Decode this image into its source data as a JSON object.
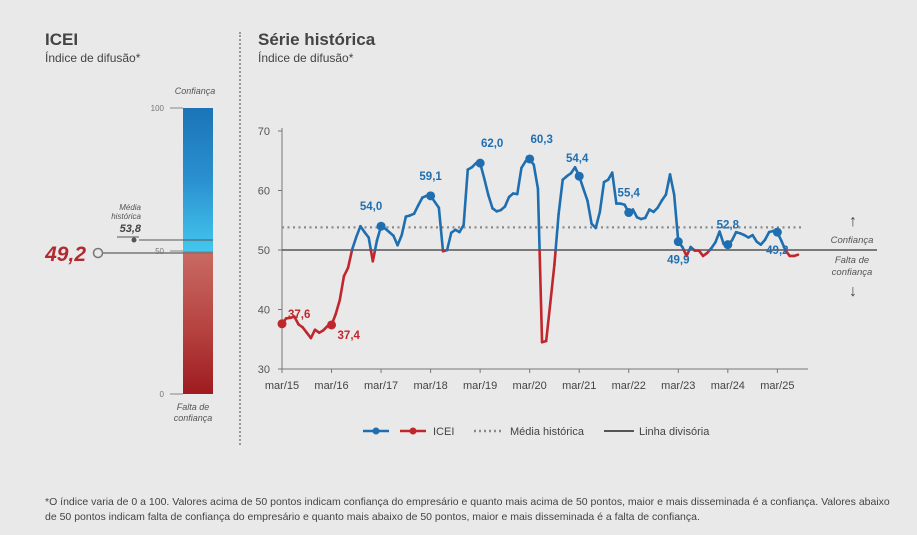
{
  "left_panel": {
    "title": "ICEI",
    "subtitle": "Índice de difusão*",
    "top_label": "Confiança",
    "bottom_label_line1": "Falta de",
    "bottom_label_line2": "confiança",
    "tick_100": "100",
    "tick_50": "50",
    "tick_0": "0",
    "current_value_label": "49,2",
    "hist_label_line1": "Média",
    "hist_label_line2": "histórica",
    "hist_value_label": "53,8"
  },
  "right_panel": {
    "title": "Série histórica",
    "subtitle": "Índice de difusão*"
  },
  "side_labels": {
    "confidence": "Confiança",
    "lack_line1": "Falta de",
    "lack_line2": "confiança"
  },
  "legend": {
    "icei": "ICEI",
    "media": "Média histórica",
    "divisoria": "Linha divisória"
  },
  "footnote": {
    "line1": "*O índice varia de 0 a 100. Valores acima de 50 pontos indicam confiança do empresário e quanto mais acima de 50 pontos, maior e mais disseminada é a confiança. Valores abaixo",
    "line2": "de 50 pontos indicam falta de confiança do empresário e quanto mais abaixo de 50 pontos, maior e mais disseminada é a falta de confiança."
  },
  "colors": {
    "confidence_line": "#1f6fb0",
    "lack_line": "#c0272d",
    "current_value": "#b02a30",
    "gauge_top": "#1b74b7",
    "gauge_mid_blue": "#43c6ee",
    "gauge_mid_red": "#c96a63",
    "gauge_bottom": "#9e1b20",
    "media_dots": "#8a8a8a",
    "divisoria": "#555555"
  },
  "chart_data": {
    "type": "line",
    "title": "Série histórica",
    "ylim": [
      30,
      70
    ],
    "y_ticks": [
      30,
      40,
      50,
      60,
      70
    ],
    "x_ticks": [
      "mar/15",
      "mar/16",
      "mar/17",
      "mar/18",
      "mar/19",
      "mar/20",
      "mar/21",
      "mar/22",
      "mar/23",
      "mar/24",
      "mar/25"
    ],
    "historical_mean": 53.8,
    "dividing_line": 50,
    "current_value": 49.2,
    "series": [
      {
        "name": "ICEI",
        "start": "mar/15",
        "frequency": "monthly",
        "values": [
          37.6,
          38.5,
          38.6,
          38.8,
          37.5,
          37.0,
          36.1,
          35.2,
          36.6,
          36.1,
          36.5,
          37.2,
          37.4,
          39.2,
          41.6,
          45.6,
          47.0,
          50.1,
          52.2,
          54.0,
          53.0,
          52.1,
          48.1,
          51.6,
          54.0,
          53.6,
          53.0,
          52.4,
          50.8,
          52.5,
          55.6,
          55.8,
          56.1,
          57.5,
          58.8,
          59.1,
          59.1,
          58.1,
          57.1,
          49.8,
          50.0,
          52.9,
          53.4,
          53.0,
          54.2,
          63.5,
          63.9,
          64.6,
          64.6,
          62.0,
          59.2,
          57.0,
          56.5,
          56.7,
          57.3,
          58.9,
          59.5,
          59.4,
          63.8,
          64.9,
          65.3,
          64.3,
          60.3,
          34.5,
          34.7,
          41.1,
          47.6,
          56.0,
          61.8,
          62.4,
          62.9,
          63.9,
          62.4,
          60.3,
          58.3,
          54.4,
          53.7,
          56.4,
          61.4,
          61.8,
          63.0,
          57.8,
          57.8,
          57.6,
          56.3,
          56.8,
          55.5,
          55.2,
          55.4,
          56.8,
          56.4,
          57.1,
          58.3,
          59.3,
          62.7,
          59.3,
          51.4,
          50.5,
          49.0,
          50.5,
          49.9,
          49.9,
          49.0,
          49.5,
          50.3,
          51.3,
          53.1,
          51.0,
          50.9,
          51.6,
          53.0,
          52.8,
          52.5,
          52.1,
          52.5,
          51.4,
          50.9,
          51.7,
          53.0,
          53.2,
          53.0,
          51.5,
          49.9,
          49.0,
          49.0,
          49.2
        ],
        "value_labels": [
          {
            "x": "mar/15",
            "value": "37,6"
          },
          {
            "x": "mar/16",
            "value": "37,4"
          },
          {
            "x": "mar/17",
            "value": "54,0"
          },
          {
            "x": "mar/18",
            "value": "59,1"
          },
          {
            "x": "mar/19",
            "value": "62,0"
          },
          {
            "x": "mar/20",
            "value": "60,3"
          },
          {
            "x": "mar/21",
            "value": "54,4"
          },
          {
            "x": "mar/22",
            "value": "55,4"
          },
          {
            "x": "mar/23",
            "value": "49,9"
          },
          {
            "x": "mar/24",
            "value": "52,8"
          },
          {
            "x": "mar/25",
            "value": "49,2"
          }
        ]
      }
    ]
  }
}
